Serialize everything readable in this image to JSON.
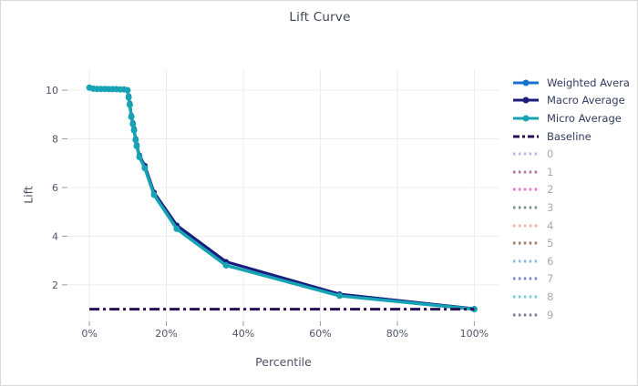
{
  "title": "Lift Curve",
  "chart_data": {
    "type": "line",
    "title": "Lift Curve",
    "xlabel": "Percentile",
    "ylabel": "Lift",
    "xlim": [
      -5.7,
      106.3
    ],
    "ylim": [
      0.5,
      10.86
    ],
    "grid": true,
    "legend_position": "right",
    "x_ticks": [
      {
        "value": 0,
        "label": "0%"
      },
      {
        "value": 20,
        "label": "20%"
      },
      {
        "value": 40,
        "label": "40%"
      },
      {
        "value": 60,
        "label": "60%"
      },
      {
        "value": 80,
        "label": "80%"
      },
      {
        "value": 100,
        "label": "100%"
      }
    ],
    "y_ticks": [
      {
        "value": 2,
        "label": "2"
      },
      {
        "value": 4,
        "label": "4"
      },
      {
        "value": 6,
        "label": "6"
      },
      {
        "value": 8,
        "label": "8"
      },
      {
        "value": 10,
        "label": "10"
      }
    ],
    "x": [
      0,
      1,
      2,
      3,
      4,
      5,
      6,
      7,
      8,
      9,
      9.9,
      10.2,
      10.5,
      10.9,
      11.3,
      11.6,
      12,
      12.3,
      13,
      14.4,
      16.8,
      22.7,
      35.5,
      65,
      100
    ],
    "series": [
      {
        "name": "Weighted Avera",
        "color": "#1772cf",
        "width": 3,
        "marker_r": 3,
        "values": [
          10.1,
          10.06,
          10.05,
          10.05,
          10.05,
          10.04,
          10.04,
          10.04,
          10.03,
          10.03,
          10,
          9.75,
          9.45,
          8.95,
          8.65,
          8.4,
          8,
          7.75,
          7.32,
          6.9,
          5.8,
          4.45,
          2.95,
          1.62,
          1.02
        ]
      },
      {
        "name": "Macro Average",
        "color": "#1b1d7e",
        "width": 3,
        "marker_r": 3,
        "values": [
          10.1,
          10.06,
          10.05,
          10.05,
          10.05,
          10.04,
          10.04,
          10.04,
          10.03,
          10.03,
          10,
          9.75,
          9.45,
          8.95,
          8.65,
          8.4,
          8,
          7.75,
          7.32,
          6.9,
          5.8,
          4.45,
          2.95,
          1.62,
          1.02
        ]
      },
      {
        "name": "Micro Average",
        "color": "#16a3b4",
        "width": 3.5,
        "marker_r": 3.5,
        "values": [
          10.1,
          10.06,
          10.05,
          10.05,
          10.05,
          10.04,
          10.04,
          10.04,
          10.03,
          10.03,
          10,
          9.7,
          9.4,
          8.9,
          8.6,
          8.35,
          7.95,
          7.7,
          7.25,
          6.8,
          5.7,
          4.3,
          2.8,
          1.55,
          1
        ]
      }
    ],
    "baseline": {
      "name": "Baseline",
      "value": 1,
      "color": "#2a0f55",
      "dash": "11,4,3,4",
      "width": 3
    }
  },
  "legend": {
    "items": [
      {
        "label": "Weighted Avera",
        "color": "#1772cf",
        "style": "line",
        "active": true
      },
      {
        "label": "Macro Average",
        "color": "#1b1d7e",
        "style": "line",
        "active": true
      },
      {
        "label": "Micro Average",
        "color": "#16a3b4",
        "style": "line",
        "active": true
      },
      {
        "label": "Baseline",
        "color": "#2a0f55",
        "style": "dashdot",
        "active": true
      },
      {
        "label": "0",
        "color": "#b3a0e8",
        "style": "dotted",
        "active": false
      },
      {
        "label": "1",
        "color": "#99527e",
        "style": "dotted",
        "active": false
      },
      {
        "label": "2",
        "color": "#e255ae",
        "style": "dotted",
        "active": false
      },
      {
        "label": "3",
        "color": "#4f7a60",
        "style": "dotted",
        "active": false
      },
      {
        "label": "4",
        "color": "#f49b8c",
        "style": "dotted",
        "active": false
      },
      {
        "label": "5",
        "color": "#8c5a49",
        "style": "dotted",
        "active": false
      },
      {
        "label": "6",
        "color": "#67a9dc",
        "style": "dotted",
        "active": false
      },
      {
        "label": "7",
        "color": "#5463c8",
        "style": "dotted",
        "active": false
      },
      {
        "label": "8",
        "color": "#45c5cd",
        "style": "dotted",
        "active": false
      },
      {
        "label": "9",
        "color": "#66517d",
        "style": "dotted",
        "active": false
      }
    ]
  },
  "colors": {
    "grid": "#ececec",
    "tick_mark": "#9a9aa5",
    "tick_text": "#4f5168",
    "title_text": "#404552",
    "legend_text_active": "#323a5e",
    "legend_text_muted": "#a9a9a9",
    "figure_border": "#d9d9d9",
    "background": "#ffffff"
  }
}
